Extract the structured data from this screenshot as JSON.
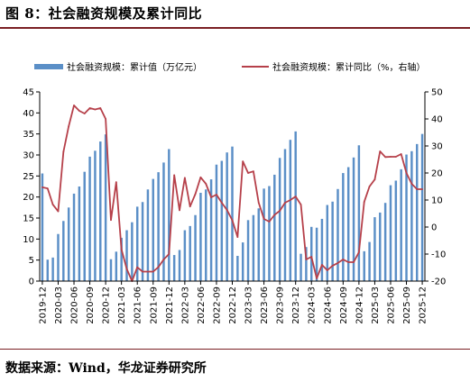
{
  "header": {
    "title": "图 8：社会融资规模及累计同比"
  },
  "footer": {
    "source": "数据来源：Wind，华龙证券研究所"
  },
  "chart_data": {
    "type": "bar+line",
    "categories": [
      "2019-12",
      "2020-01",
      "2020-02",
      "2020-03",
      "2020-04",
      "2020-05",
      "2020-06",
      "2020-07",
      "2020-08",
      "2020-09",
      "2020-10",
      "2020-11",
      "2020-12",
      "2021-01",
      "2021-02",
      "2021-03",
      "2021-04",
      "2021-05",
      "2021-06",
      "2021-07",
      "2021-08",
      "2021-09",
      "2021-10",
      "2021-11",
      "2021-12",
      "2022-01",
      "2022-02",
      "2022-03",
      "2022-04",
      "2022-05",
      "2022-06",
      "2022-07",
      "2022-08",
      "2022-09",
      "2022-10",
      "2022-11",
      "2022-12",
      "2023-01",
      "2023-02",
      "2023-03",
      "2023-04",
      "2023-05",
      "2023-06",
      "2023-07",
      "2023-08",
      "2023-09",
      "2023-10",
      "2023-11",
      "2023-12",
      "2024-01",
      "2024-02",
      "2024-03",
      "2024-04",
      "2024-05",
      "2024-06",
      "2024-07",
      "2024-08",
      "2024-09",
      "2024-10",
      "2024-11",
      "2024-12",
      "2025-01",
      "2025-02",
      "2025-03",
      "2025-04",
      "2025-05",
      "2025-06",
      "2025-07",
      "2025-08",
      "2025-09",
      "2025-10",
      "2025-11",
      "2025-12"
    ],
    "xtick_labels": [
      "2019-12",
      "2020-03",
      "2020-06",
      "2020-09",
      "2020-12",
      "2021-03",
      "2021-06",
      "2021-09",
      "2021-12",
      "2022-03",
      "2022-06",
      "2022-09",
      "2022-12",
      "2023-03",
      "2023-06",
      "2023-09",
      "2023-12",
      "2024-03",
      "2024-06",
      "2024-09",
      "2024-12",
      "2025-03",
      "2025-06",
      "2025-09",
      "2025-12"
    ],
    "series": [
      {
        "name": "社会融资规模：累计值（万亿元）",
        "type": "bar",
        "axis": "left",
        "color": "#5b8fc7",
        "values": [
          25.6,
          5.1,
          5.6,
          11.2,
          14.3,
          17.5,
          20.8,
          22.5,
          26.0,
          29.6,
          31.0,
          33.2,
          34.9,
          5.2,
          7.0,
          10.3,
          12.1,
          14.0,
          17.7,
          18.8,
          21.8,
          24.3,
          25.9,
          28.2,
          31.4,
          6.2,
          7.4,
          12.1,
          13.1,
          15.7,
          21.0,
          21.8,
          24.2,
          27.7,
          28.6,
          30.6,
          32.0,
          6.0,
          9.2,
          14.5,
          15.7,
          17.3,
          22.0,
          22.6,
          25.3,
          29.3,
          31.4,
          33.6,
          35.6,
          6.5,
          8.1,
          12.9,
          12.7,
          14.8,
          18.1,
          18.9,
          21.9,
          25.7,
          27.1,
          29.4,
          32.3,
          7.1,
          9.3,
          15.2,
          16.3,
          18.6,
          22.8,
          23.9,
          26.6,
          30.1,
          30.9,
          32.6,
          35.0
        ]
      },
      {
        "name": "社会融资规模：累计同比（%，右轴）",
        "type": "line",
        "axis": "right",
        "color": "#b6404a",
        "values": [
          14.7,
          14.3,
          8.3,
          5.8,
          27.8,
          37.3,
          45.0,
          43.0,
          42.0,
          44.0,
          43.5,
          44.0,
          40.0,
          2.6,
          16.6,
          -8.3,
          -15.5,
          -20.0,
          -14.9,
          -16.5,
          -16.5,
          -16.5,
          -14.8,
          -12.0,
          -10.0,
          19.2,
          6.2,
          18.2,
          7.6,
          12.2,
          18.4,
          16.0,
          11.0,
          12.0,
          9.0,
          6.3,
          2.5,
          -3.7,
          24.3,
          20.0,
          20.6,
          9.0,
          3.0,
          2.0,
          4.5,
          6.0,
          9.0,
          10.0,
          11.3,
          8.3,
          -12.0,
          -11.0,
          -19.0,
          -14.0,
          -16.0,
          -14.3,
          -13.3,
          -12.0,
          -13.0,
          -13.0,
          -9.3,
          9.3,
          15.0,
          17.6,
          28.0,
          25.9,
          26.0,
          26.0,
          27.0,
          20.0,
          16.0,
          14.0,
          14.0
        ]
      }
    ],
    "y_left": {
      "ylim": [
        0,
        45
      ],
      "ticks": [
        0,
        5,
        10,
        15,
        20,
        25,
        30,
        35,
        40,
        45
      ]
    },
    "y_right": {
      "ylim": [
        -20,
        50
      ],
      "ticks": [
        -20,
        -10,
        0,
        10,
        20,
        30,
        40,
        50
      ]
    },
    "legend": {
      "placement": "top"
    },
    "grid": false
  }
}
